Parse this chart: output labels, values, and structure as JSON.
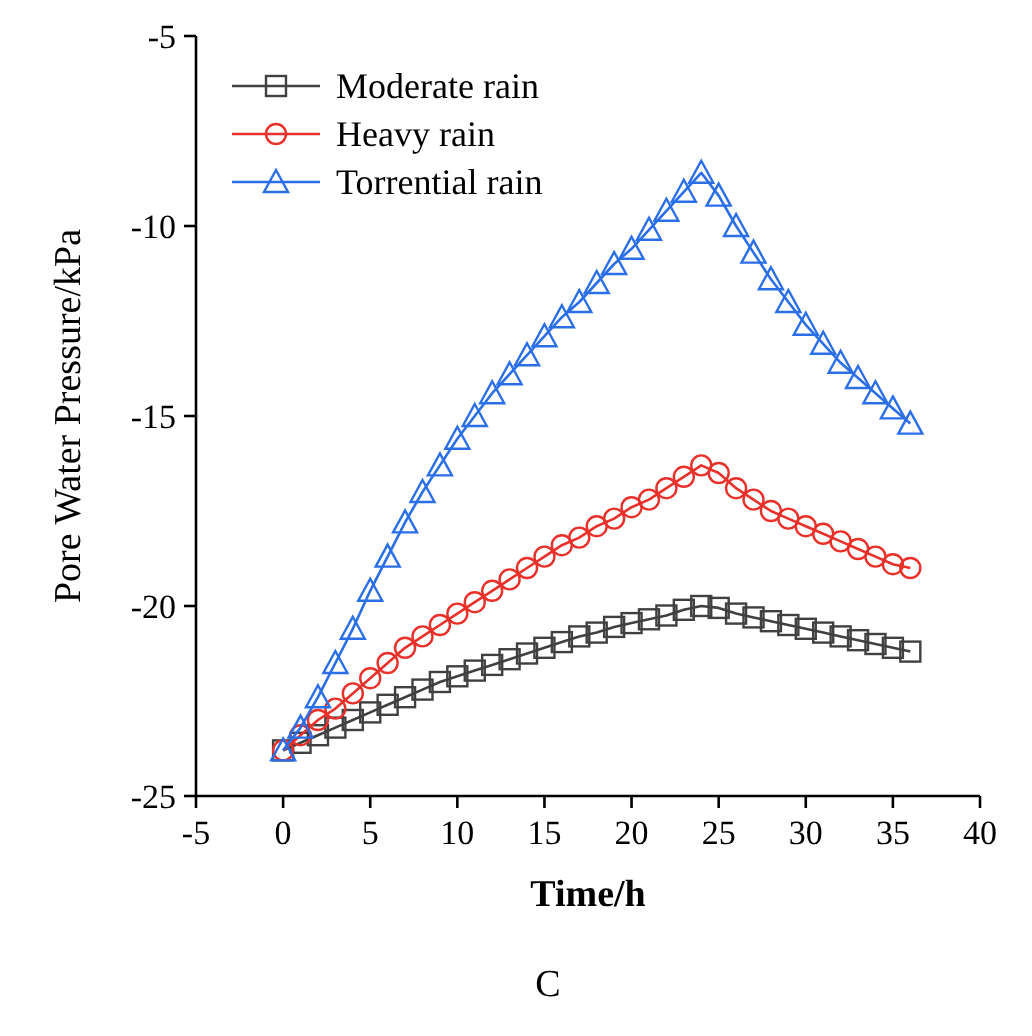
{
  "chart_data": {
    "type": "line",
    "xlabel": "Time/h",
    "ylabel": "Pore Water Pressure/kPa",
    "xlim": [
      -5,
      40
    ],
    "xticks": [
      -5,
      0,
      5,
      10,
      15,
      20,
      25,
      30,
      35,
      40
    ],
    "ylim": [
      -25,
      -5
    ],
    "yticks": [
      -25,
      -20,
      -15,
      -10,
      -5
    ],
    "legend": "top left",
    "grid": false,
    "annotations": [
      "C"
    ],
    "x": [
      0,
      1,
      2,
      3,
      4,
      5,
      6,
      7,
      8,
      9,
      10,
      11,
      12,
      13,
      14,
      15,
      16,
      17,
      18,
      19,
      20,
      21,
      22,
      23,
      24,
      25,
      26,
      27,
      28,
      29,
      30,
      31,
      32,
      33,
      34,
      35,
      36
    ],
    "series": [
      {
        "name": "Moderate rain",
        "color": "#404040",
        "marker": "square",
        "values": [
          -23.8,
          -23.6,
          -23.4,
          -23.2,
          -23.0,
          -22.8,
          -22.6,
          -22.4,
          -22.2,
          -22.0,
          -21.85,
          -21.7,
          -21.55,
          -21.4,
          -21.25,
          -21.1,
          -20.95,
          -20.8,
          -20.7,
          -20.55,
          -20.45,
          -20.35,
          -20.25,
          -20.1,
          -20.0,
          -20.05,
          -20.2,
          -20.3,
          -20.4,
          -20.5,
          -20.6,
          -20.7,
          -20.8,
          -20.9,
          -21.0,
          -21.1,
          -21.2
        ]
      },
      {
        "name": "Heavy rain",
        "color": "#e8312a",
        "marker": "circle",
        "values": [
          -23.8,
          -23.4,
          -23.0,
          -22.7,
          -22.3,
          -21.9,
          -21.5,
          -21.1,
          -20.8,
          -20.5,
          -20.2,
          -19.9,
          -19.6,
          -19.3,
          -19.0,
          -18.7,
          -18.4,
          -18.2,
          -17.9,
          -17.7,
          -17.4,
          -17.2,
          -16.9,
          -16.6,
          -16.3,
          -16.5,
          -16.9,
          -17.2,
          -17.5,
          -17.7,
          -17.9,
          -18.1,
          -18.3,
          -18.5,
          -18.7,
          -18.9,
          -19.0
        ]
      },
      {
        "name": "Torrential rain",
        "color": "#2a6ee8",
        "marker": "triangle",
        "values": [
          -23.8,
          -23.2,
          -22.4,
          -21.5,
          -20.6,
          -19.6,
          -18.7,
          -17.8,
          -17.0,
          -16.3,
          -15.6,
          -15.0,
          -14.4,
          -13.9,
          -13.4,
          -12.9,
          -12.4,
          -12.0,
          -11.5,
          -11.0,
          -10.6,
          -10.1,
          -9.6,
          -9.1,
          -8.6,
          -9.2,
          -10.0,
          -10.7,
          -11.4,
          -12.0,
          -12.6,
          -13.1,
          -13.6,
          -14.0,
          -14.4,
          -14.8,
          -15.2
        ]
      }
    ]
  }
}
